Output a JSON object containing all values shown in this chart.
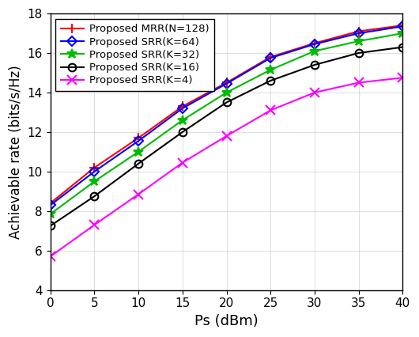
{
  "x": [
    0,
    5,
    10,
    15,
    20,
    25,
    30,
    35,
    40
  ],
  "MRR_N128": [
    8.4,
    10.2,
    11.7,
    13.3,
    14.5,
    15.8,
    16.5,
    17.1,
    17.4
  ],
  "SRR_K64": [
    8.3,
    10.0,
    11.55,
    13.2,
    14.45,
    15.75,
    16.45,
    17.0,
    17.35
  ],
  "SRR_K32": [
    7.85,
    9.5,
    11.0,
    12.6,
    14.0,
    15.15,
    16.1,
    16.6,
    17.0
  ],
  "SRR_K16": [
    7.25,
    8.75,
    10.4,
    12.0,
    13.5,
    14.6,
    15.4,
    16.0,
    16.3
  ],
  "SRR_K4": [
    5.7,
    7.3,
    8.85,
    10.45,
    11.8,
    13.1,
    14.0,
    14.5,
    14.75
  ],
  "colors": {
    "MRR_N128": "#ff0000",
    "SRR_K64": "#0000ff",
    "SRR_K32": "#00bb00",
    "SRR_K16": "#000000",
    "SRR_K4": "#ff00ff"
  },
  "labels": {
    "MRR_N128": "Proposed MRR(N=128)",
    "SRR_K64": "Proposed SRR(K=64)",
    "SRR_K32": "Proposed SRR(K=32)",
    "SRR_K16": "Proposed SRR(K=16)",
    "SRR_K4": "Proposed SRR(K=4)"
  },
  "markers": {
    "MRR_N128": "+",
    "SRR_K64": "D",
    "SRR_K32": "*",
    "SRR_K16": "o",
    "SRR_K4": "x"
  },
  "marker_fc": {
    "MRR_N128": "#ff0000",
    "SRR_K64": "none",
    "SRR_K32": "#00bb00",
    "SRR_K16": "none",
    "SRR_K4": "#ff00ff"
  },
  "marker_sizes": {
    "MRR_N128": 9,
    "SRR_K64": 6,
    "SRR_K32": 9,
    "SRR_K16": 7,
    "SRR_K4": 9
  },
  "xlabel": "Ps (dBm)",
  "ylabel": "Achievable rate (bits/s/Hz)",
  "xlim": [
    0,
    40
  ],
  "ylim": [
    4,
    18
  ],
  "xticks": [
    0,
    5,
    10,
    15,
    20,
    25,
    30,
    35,
    40
  ],
  "yticks": [
    4,
    6,
    8,
    10,
    12,
    14,
    16,
    18
  ],
  "linewidth": 1.5,
  "xlabel_fontsize": 13,
  "ylabel_fontsize": 12,
  "tick_fontsize": 11,
  "legend_fontsize": 9.5
}
